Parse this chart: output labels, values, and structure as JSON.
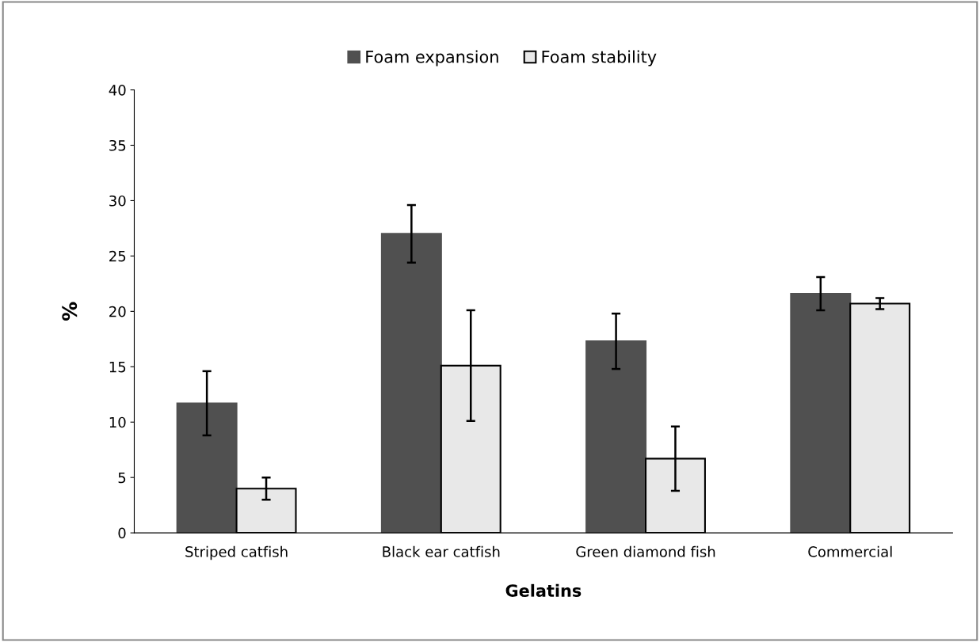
{
  "chart_data": {
    "type": "bar",
    "xlabel": "Gelatins",
    "ylabel": "%",
    "categories": [
      "Striped catfish",
      "Black ear catfish",
      "Green diamond fish",
      "Commercial"
    ],
    "series": [
      {
        "name": "Foam expansion",
        "color": "#505050",
        "values": [
          11.7,
          27.0,
          17.3,
          21.6
        ],
        "errors": [
          2.9,
          2.6,
          2.5,
          1.5
        ]
      },
      {
        "name": "Foam stability",
        "color": "#e8e8e8",
        "values": [
          4.0,
          15.1,
          6.7,
          20.7
        ],
        "errors": [
          1.0,
          5.0,
          2.9,
          0.5
        ]
      }
    ],
    "ylim": [
      0,
      40
    ],
    "yticks": [
      0,
      5,
      10,
      15,
      20,
      25,
      30,
      35,
      40
    ],
    "grid": false,
    "legend": "top"
  }
}
